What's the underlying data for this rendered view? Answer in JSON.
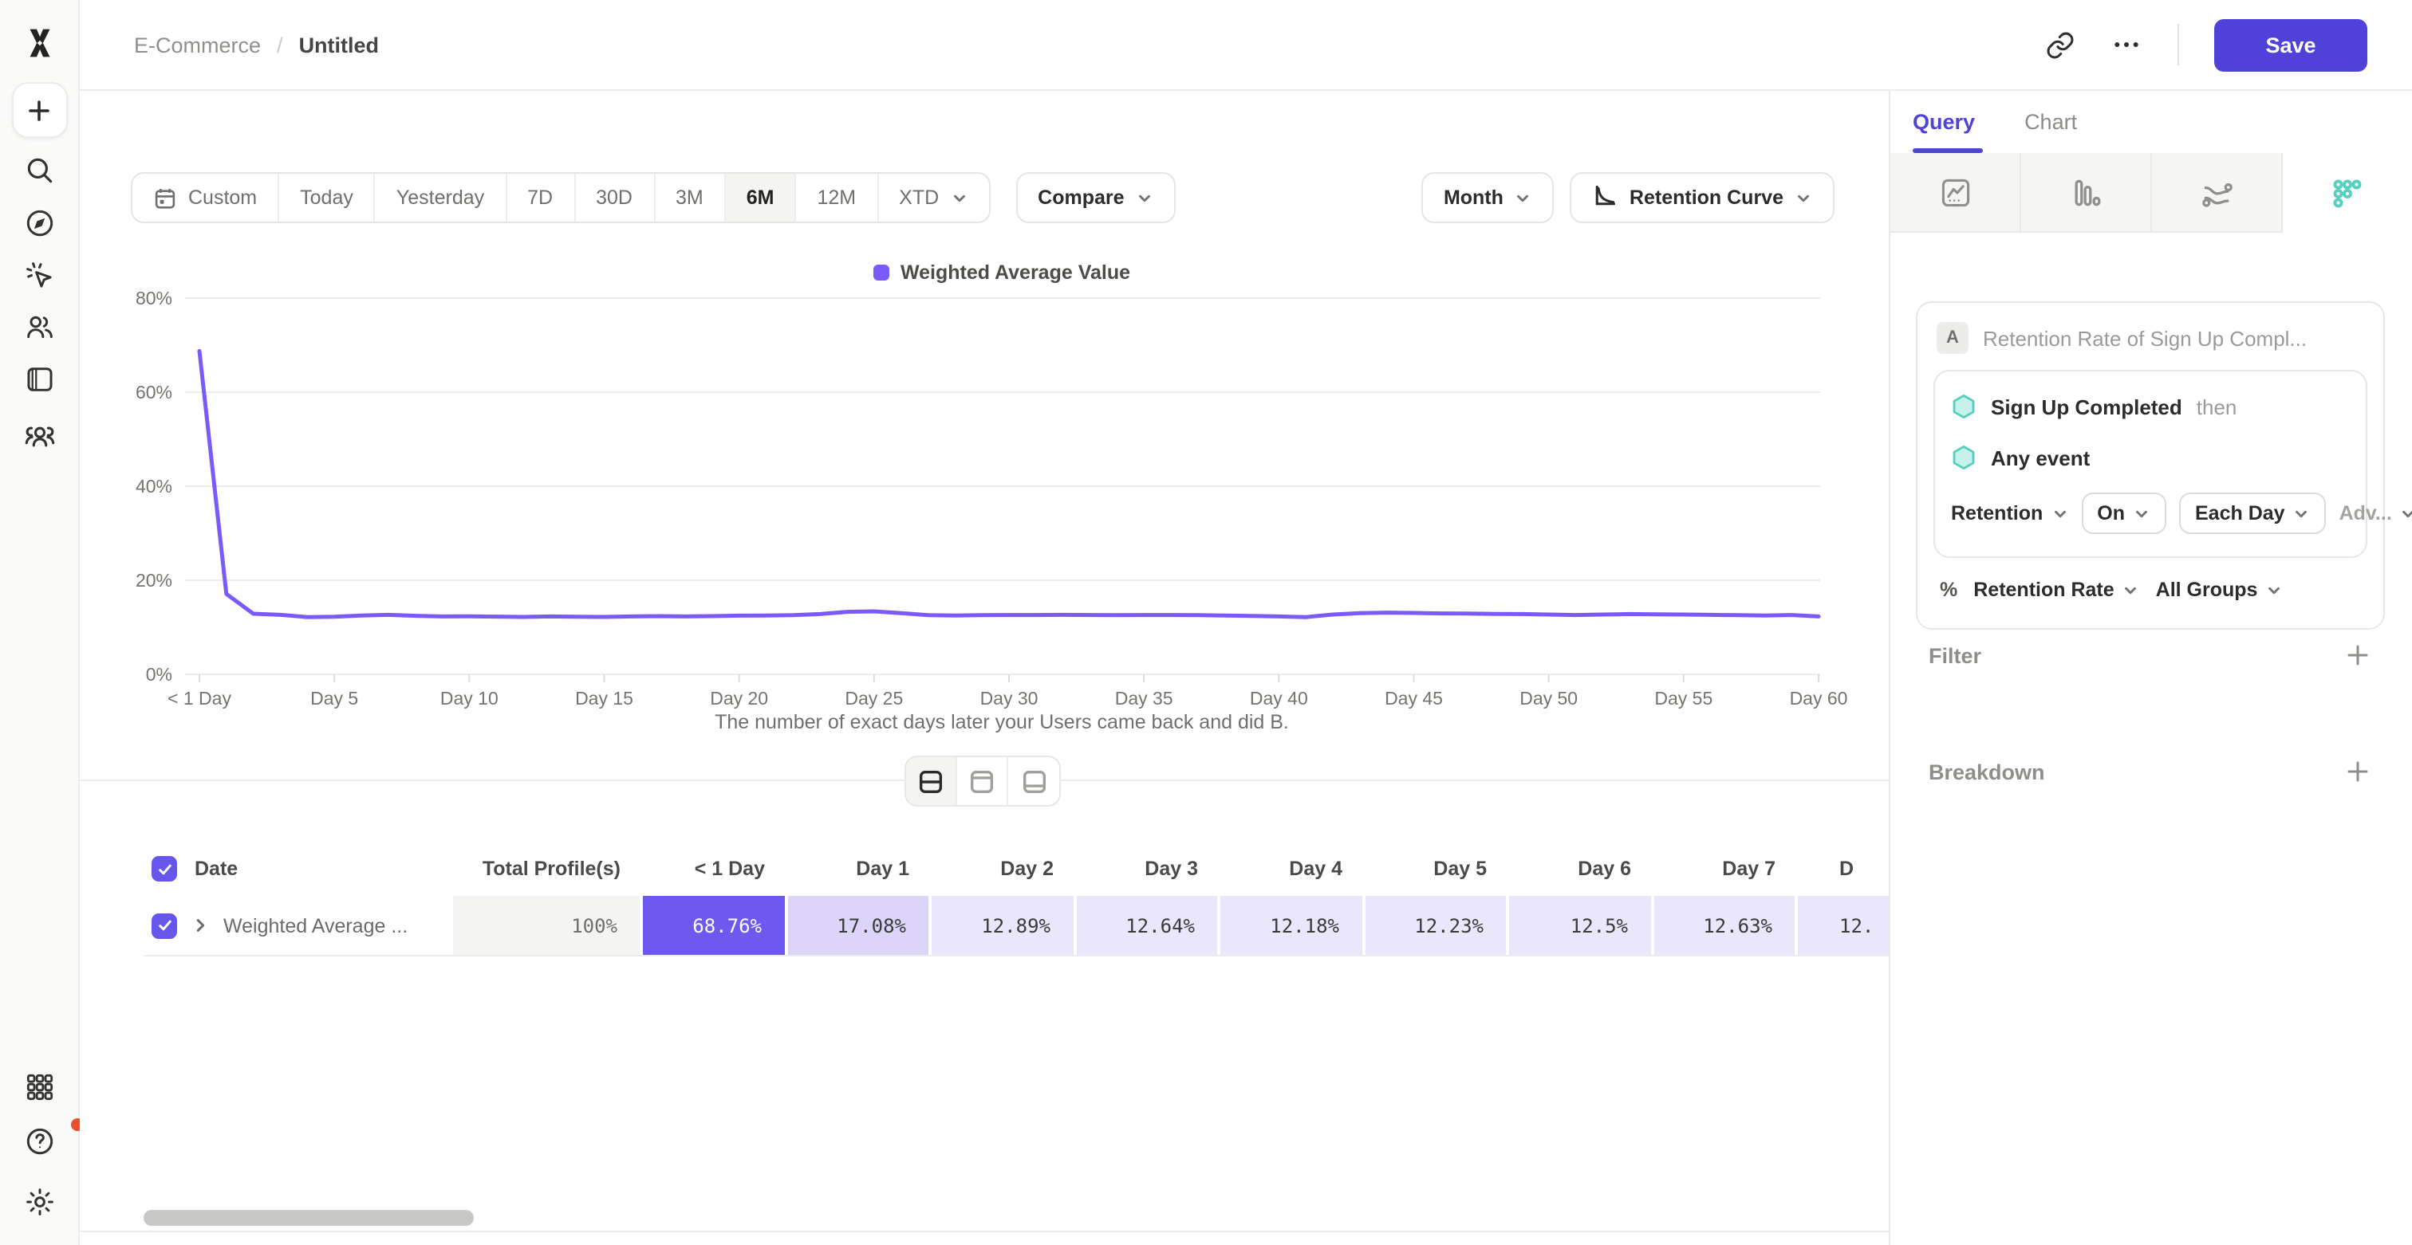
{
  "colors": {
    "accent": "#4f42d8",
    "line": "#7a5af8",
    "cellStrong": "#6d58f0",
    "cellDay1": "#dcd5f9",
    "cellLight": "#eae6fb",
    "cellMuted": "#f4f4f3",
    "teal": "#54d0bf",
    "tealFill": "#c7f1e9",
    "alert": "#e8502e"
  },
  "header": {
    "breadcrumb_project": "E-Commerce",
    "breadcrumb_separator": "/",
    "breadcrumb_report": "Untitled",
    "save_label": "Save"
  },
  "toolbar": {
    "ranges": [
      {
        "label": "Custom",
        "icon": "calendar"
      },
      {
        "label": "Today"
      },
      {
        "label": "Yesterday"
      },
      {
        "label": "7D"
      },
      {
        "label": "30D"
      },
      {
        "label": "3M"
      },
      {
        "label": "6M"
      },
      {
        "label": "12M"
      },
      {
        "label": "XTD",
        "chevron": true
      }
    ],
    "selected": "6M",
    "compare": "Compare",
    "granularity": "Month",
    "view": "Retention Curve"
  },
  "chart_data": {
    "type": "line",
    "legend": [
      {
        "label": "Weighted Average Value",
        "color": "#7a5af8"
      }
    ],
    "xlabel": "The number of exact days later your Users came back and did B.",
    "ylim": [
      0,
      80
    ],
    "yticks": [
      "0%",
      "20%",
      "40%",
      "60%",
      "80%"
    ],
    "grid": true,
    "x_ticks": [
      "< 1 Day",
      "Day 5",
      "Day 10",
      "Day 15",
      "Day 20",
      "Day 25",
      "Day 30",
      "Day 35",
      "Day 40",
      "Day 45",
      "Day 50",
      "Day 55",
      "Day 60"
    ],
    "series": [
      {
        "name": "Weighted Average Value",
        "x_unit": "day_offset_0_to_60",
        "values": [
          68.76,
          17.08,
          12.89,
          12.64,
          12.18,
          12.23,
          12.5,
          12.63,
          12.45,
          12.32,
          12.35,
          12.26,
          12.22,
          12.3,
          12.24,
          12.2,
          12.3,
          12.36,
          12.3,
          12.36,
          12.46,
          12.52,
          12.58,
          12.82,
          13.28,
          13.4,
          13.02,
          12.56,
          12.5,
          12.56,
          12.62,
          12.6,
          12.66,
          12.6,
          12.56,
          12.6,
          12.62,
          12.56,
          12.5,
          12.4,
          12.3,
          12.16,
          12.7,
          13.0,
          13.12,
          13.04,
          12.96,
          12.9,
          12.86,
          12.8,
          12.7,
          12.62,
          12.72,
          12.8,
          12.76,
          12.7,
          12.64,
          12.58,
          12.52,
          12.6,
          12.3
        ]
      }
    ]
  },
  "layout_toggle": {
    "options": [
      "split-view",
      "chart-only",
      "table-only"
    ],
    "selected": "split-view"
  },
  "table": {
    "columns": [
      {
        "label": "Date"
      },
      {
        "label": "Total Profile(s)"
      },
      {
        "label": "< 1 Day"
      },
      {
        "label": "Day 1"
      },
      {
        "label": "Day 2"
      },
      {
        "label": "Day 3"
      },
      {
        "label": "Day 4"
      },
      {
        "label": "Day 5"
      },
      {
        "label": "Day 6"
      },
      {
        "label": "Day 7"
      },
      {
        "label": "D"
      }
    ],
    "rows": [
      {
        "checked": true,
        "label": "Weighted Average ...",
        "values": [
          "100%",
          "68.76%",
          "17.08%",
          "12.89%",
          "12.64%",
          "12.18%",
          "12.23%",
          "12.5%",
          "12.63%",
          "12."
        ]
      }
    ]
  },
  "panel": {
    "tabs": [
      {
        "label": "Query",
        "active": true
      },
      {
        "label": "Chart",
        "active": false
      }
    ],
    "chart_types": [
      "insights",
      "funnels",
      "flows",
      "retention"
    ],
    "selected_chart_type": "retention",
    "query": {
      "badge": "A",
      "title": "Retention Rate of Sign Up Compl...",
      "event": "Sign Up Completed",
      "then": "then",
      "return_event": "Any event",
      "retention": "Retention",
      "on": "On",
      "interval": "Each Day",
      "advanced": "Adv...",
      "percent": "%",
      "measure": "Retention Rate",
      "groups": "All Groups"
    },
    "filter": {
      "label": "Filter"
    },
    "breakdown": {
      "label": "Breakdown"
    }
  }
}
